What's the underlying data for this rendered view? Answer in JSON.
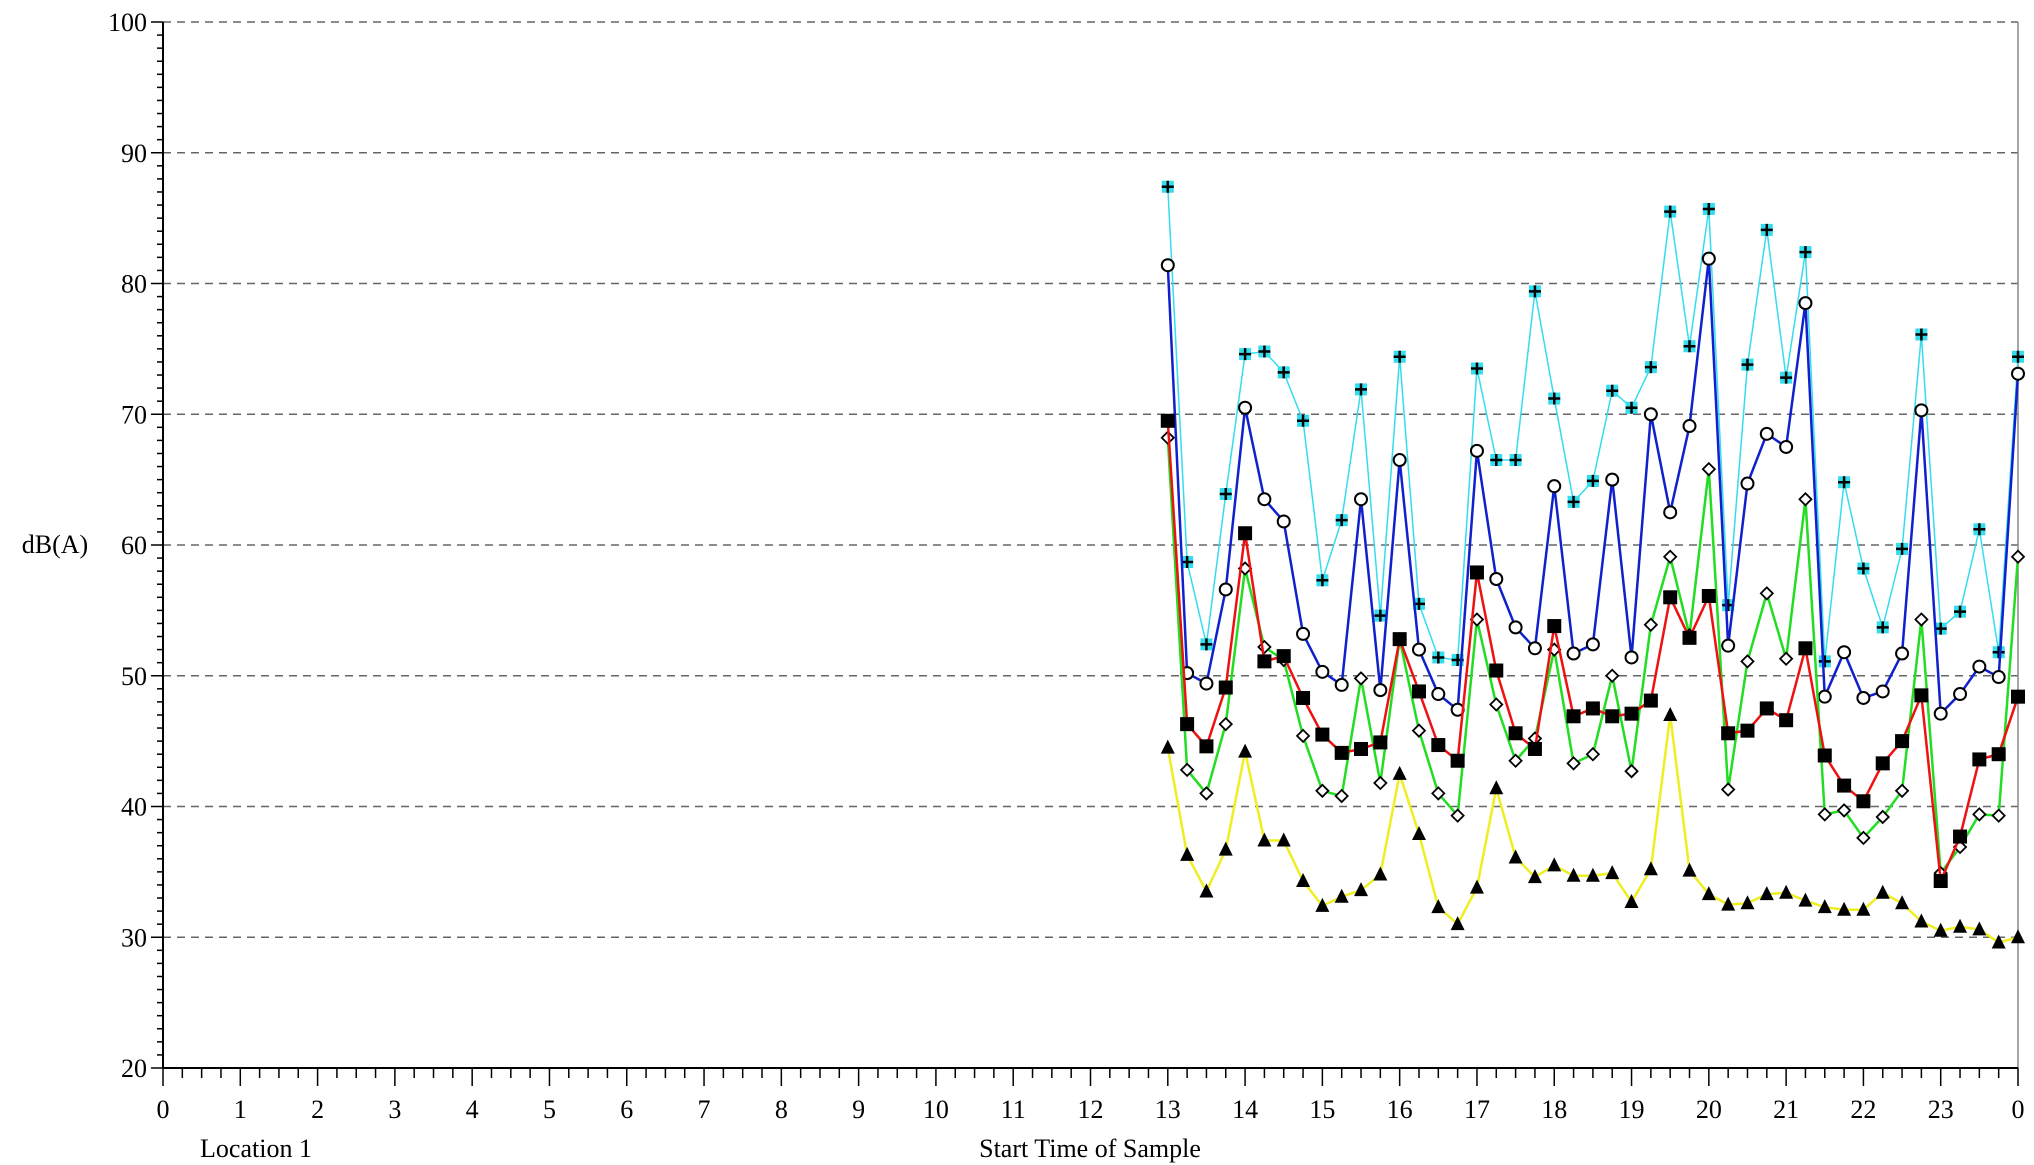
{
  "chart_data": {
    "type": "line",
    "ylabel": "dB(A)",
    "xlabel": "Start Time of Sample",
    "location_label": "Location 1",
    "ylim": [
      20,
      100
    ],
    "y_ticks": [
      20,
      30,
      40,
      50,
      60,
      70,
      80,
      90,
      100
    ],
    "x_tick_labels": [
      "0",
      "1",
      "2",
      "3",
      "4",
      "5",
      "6",
      "7",
      "8",
      "9",
      "10",
      "11",
      "12",
      "13",
      "14",
      "15",
      "16",
      "17",
      "18",
      "19",
      "20",
      "21",
      "22",
      "23",
      "0"
    ],
    "xlim": [
      0,
      24
    ],
    "grid": "horizontal dashed",
    "x": [
      13.0,
      13.25,
      13.5,
      13.75,
      14.0,
      14.25,
      14.5,
      14.75,
      15.0,
      15.25,
      15.5,
      15.75,
      16.0,
      16.25,
      16.5,
      16.75,
      17.0,
      17.25,
      17.5,
      17.75,
      18.0,
      18.25,
      18.5,
      18.75,
      19.0,
      19.25,
      19.5,
      19.75,
      20.0,
      20.25,
      20.5,
      20.75,
      21.0,
      21.25,
      21.5,
      21.75,
      22.0,
      22.25,
      22.5,
      22.75,
      23.0,
      23.25,
      23.5,
      23.75,
      24.0
    ],
    "series": [
      {
        "color": "#33DDEE",
        "marker": "cross-square",
        "values": [
          87.4,
          58.7,
          52.4,
          63.9,
          74.6,
          74.8,
          73.2,
          69.5,
          57.3,
          61.9,
          71.9,
          54.6,
          74.4,
          55.5,
          51.4,
          51.2,
          73.5,
          66.5,
          66.5,
          79.4,
          71.2,
          63.3,
          64.9,
          71.8,
          70.5,
          73.6,
          85.5,
          75.2,
          85.7,
          55.4,
          73.8,
          84.1,
          72.8,
          82.4,
          51.1,
          64.8,
          58.2,
          53.7,
          59.7,
          76.1,
          53.6,
          54.9,
          61.2,
          51.8,
          74.4
        ]
      },
      {
        "color": "#1020CC",
        "marker": "open-circle",
        "values": [
          81.4,
          50.2,
          49.4,
          56.6,
          70.5,
          63.5,
          61.8,
          53.2,
          50.3,
          49.3,
          63.5,
          48.9,
          66.5,
          52.0,
          48.6,
          47.4,
          67.2,
          57.4,
          53.7,
          52.1,
          64.5,
          51.7,
          52.4,
          65.0,
          51.4,
          70.0,
          62.5,
          69.1,
          81.9,
          52.3,
          64.7,
          68.5,
          67.5,
          78.5,
          48.4,
          51.8,
          48.3,
          48.8,
          51.7,
          70.3,
          47.1,
          48.6,
          50.7,
          49.9,
          73.1
        ]
      },
      {
        "color": "#22DD22",
        "marker": "open-diamond",
        "values": [
          68.2,
          42.8,
          41.0,
          46.3,
          58.2,
          52.2,
          51.2,
          45.4,
          41.2,
          40.8,
          49.8,
          41.8,
          52.8,
          45.8,
          41.0,
          39.3,
          54.3,
          47.8,
          43.5,
          45.2,
          52.0,
          43.3,
          44.0,
          50.0,
          42.7,
          53.9,
          59.1,
          53.1,
          65.8,
          41.3,
          51.1,
          56.3,
          51.3,
          63.5,
          39.4,
          39.7,
          37.6,
          39.2,
          41.2,
          54.3,
          34.9,
          36.9,
          39.4,
          39.3,
          59.1
        ]
      },
      {
        "color": "#EE1111",
        "marker": "filled-square",
        "values": [
          69.5,
          46.3,
          44.6,
          49.1,
          60.9,
          51.1,
          51.5,
          48.3,
          45.5,
          44.1,
          44.4,
          44.9,
          52.8,
          48.8,
          44.7,
          43.5,
          57.9,
          50.4,
          45.6,
          44.4,
          53.8,
          46.9,
          47.5,
          46.9,
          47.1,
          48.1,
          56.0,
          52.9,
          56.1,
          45.6,
          45.8,
          47.5,
          46.6,
          52.1,
          43.9,
          41.6,
          40.4,
          43.3,
          45.0,
          48.5,
          34.3,
          37.7,
          43.6,
          44.0,
          48.4
        ]
      },
      {
        "color": "#EEEE22",
        "marker": "filled-triangle",
        "values": [
          44.5,
          36.3,
          33.5,
          36.7,
          44.2,
          37.4,
          37.4,
          34.3,
          32.4,
          33.1,
          33.6,
          34.8,
          42.5,
          37.9,
          32.3,
          31.0,
          33.8,
          41.4,
          36.1,
          34.6,
          35.5,
          34.7,
          34.7,
          34.9,
          32.7,
          35.2,
          47.0,
          35.1,
          33.3,
          32.5,
          32.6,
          33.3,
          33.4,
          32.8,
          32.3,
          32.1,
          32.1,
          33.4,
          32.6,
          31.2,
          30.5,
          30.8,
          30.6,
          29.6,
          30.0
        ]
      }
    ]
  }
}
